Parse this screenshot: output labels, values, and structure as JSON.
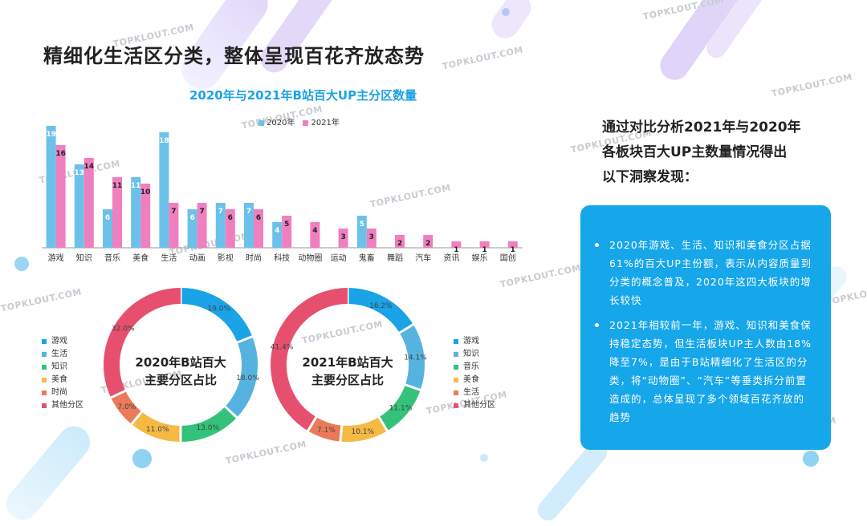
{
  "page_title": "精细化生活区分类，整体呈现百花齐放态势",
  "watermark": "TOPKLOUT.COM",
  "colors": {
    "blue": "#6cc1ea",
    "pink": "#f07fc0",
    "accent": "#16a6ea"
  },
  "chart_data": [
    {
      "type": "bar",
      "title": "2020年与2021年B站百大UP主分区数量",
      "categories": [
        "游戏",
        "知识",
        "音乐",
        "美食",
        "生活",
        "动画",
        "影视",
        "时尚",
        "科技",
        "动物圈",
        "运动",
        "鬼畜",
        "舞蹈",
        "汽车",
        "资讯",
        "娱乐",
        "国创"
      ],
      "series": [
        {
          "name": "2020年",
          "color": "#6cc1ea",
          "values": [
            19,
            13,
            6,
            11,
            18,
            6,
            7,
            7,
            4,
            null,
            null,
            5,
            null,
            null,
            null,
            null,
            null
          ]
        },
        {
          "name": "2021年",
          "color": "#f07fc0",
          "values": [
            16,
            14,
            11,
            10,
            7,
            7,
            6,
            6,
            5,
            4,
            3,
            3,
            2,
            2,
            1,
            1,
            1
          ]
        }
      ],
      "ylim": [
        0,
        20
      ]
    },
    {
      "type": "pie",
      "title": "2020年B站百大主要分区占比",
      "center_lines": [
        "2020年B站百大",
        "主要分区占比"
      ],
      "labels": [
        "游戏",
        "生活",
        "知识",
        "美食",
        "时尚",
        "其他分区"
      ],
      "values": [
        19.0,
        18.0,
        13.0,
        11.0,
        7.0,
        32.0
      ],
      "value_labels": [
        "19.0%",
        "18.0%",
        "13.0%",
        "11.0%",
        "7.0%",
        "32.0%"
      ],
      "colors": [
        "#1aa3e6",
        "#56b3e0",
        "#34c27a",
        "#f5b944",
        "#eb7a5a",
        "#e6506e"
      ]
    },
    {
      "type": "pie",
      "title": "2021年B站百大主要分区占比",
      "center_lines": [
        "2021年B站百大",
        "主要分区占比"
      ],
      "labels": [
        "游戏",
        "知识",
        "音乐",
        "美食",
        "生活",
        "其他分区"
      ],
      "values": [
        16.2,
        14.1,
        11.1,
        10.1,
        7.1,
        41.4
      ],
      "value_labels": [
        "16.2%",
        "14.1%",
        "11.1%",
        "10.1%",
        "7.1%",
        "41.4%"
      ],
      "colors": [
        "#1aa3e6",
        "#56b3e0",
        "#34c27a",
        "#f5b944",
        "#eb7a5a",
        "#e6506e"
      ]
    }
  ],
  "insight": {
    "heading_lines": [
      "通过对比分析2021年与2020年",
      "各板块百大UP主数量情况得出",
      "以下洞察发现："
    ],
    "bullets": [
      "2020年游戏、生活、知识和美食分区占据61%的百大UP主份额，表示从内容质量到分类的概念普及，2020年这四大板块的增长较快",
      "2021年相较前一年，游戏、知识和美食保持稳定态势，但生活板块UP主人数由18%降至7%，是由于B站精细化了生活区的分类，将“动物圈”、“汽车”等垂类拆分前置造成的，总体呈现了多个领域百花齐放的趋势"
    ]
  }
}
